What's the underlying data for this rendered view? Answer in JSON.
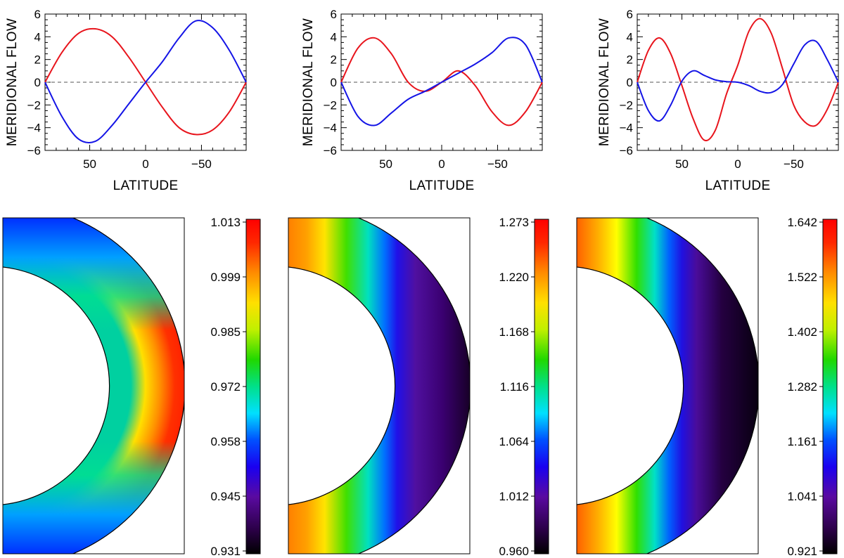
{
  "colors": {
    "series_a": "#e8141c",
    "series_b": "#1414e6",
    "zero_line": "#555555",
    "frame": "#000000"
  },
  "chart_data": [
    {
      "type": "line",
      "panel": "top-left",
      "xlabel": "LATITUDE",
      "ylabel": "MERIDIONAL FLOW",
      "xlim": [
        90,
        -90
      ],
      "ylim": [
        -6,
        6
      ],
      "xticks": [
        50,
        0,
        -50
      ],
      "yticks": [
        -6,
        -4,
        -2,
        0,
        2,
        4,
        6
      ],
      "x": [
        90,
        75,
        60,
        45,
        30,
        15,
        0,
        -15,
        -30,
        -45,
        -60,
        -75,
        -90
      ],
      "series": [
        {
          "name": "red",
          "color": "#e8141c",
          "values": [
            0,
            2.6,
            4.3,
            4.7,
            4.0,
            2.2,
            0,
            -2.2,
            -4.0,
            -4.6,
            -4.2,
            -2.6,
            0
          ]
        },
        {
          "name": "blue",
          "color": "#1414e6",
          "values": [
            0,
            -3.0,
            -5.0,
            -5.2,
            -3.8,
            -1.9,
            0,
            1.8,
            3.9,
            5.4,
            4.8,
            2.8,
            0
          ]
        }
      ],
      "zero_line": true
    },
    {
      "type": "line",
      "panel": "top-middle",
      "xlabel": "LATITUDE",
      "ylabel": "MERIDIONAL FLOW",
      "xlim": [
        90,
        -90
      ],
      "ylim": [
        -6,
        6
      ],
      "xticks": [
        50,
        0,
        -50
      ],
      "yticks": [
        -6,
        -4,
        -2,
        0,
        2,
        4,
        6
      ],
      "x": [
        90,
        75,
        60,
        45,
        30,
        15,
        0,
        -15,
        -30,
        -45,
        -60,
        -75,
        -90
      ],
      "series": [
        {
          "name": "red",
          "color": "#e8141c",
          "values": [
            0,
            3.0,
            3.9,
            2.5,
            0.0,
            -0.8,
            0,
            1.0,
            -0.3,
            -2.6,
            -3.8,
            -2.6,
            0
          ]
        },
        {
          "name": "blue",
          "color": "#1414e6",
          "values": [
            0,
            -3.0,
            -3.8,
            -2.7,
            -1.5,
            -0.8,
            0,
            0.8,
            1.6,
            2.6,
            3.9,
            3.3,
            0
          ]
        }
      ],
      "zero_line": true
    },
    {
      "type": "line",
      "panel": "top-right",
      "xlabel": "LATITUDE",
      "ylabel": "MERIDIONAL FLOW",
      "xlim": [
        90,
        -90
      ],
      "ylim": [
        -6,
        6
      ],
      "xticks": [
        50,
        0,
        -50
      ],
      "yticks": [
        -6,
        -4,
        -2,
        0,
        2,
        4,
        6
      ],
      "x": [
        90,
        80,
        70,
        60,
        50,
        40,
        30,
        20,
        10,
        0,
        -10,
        -20,
        -30,
        -40,
        -50,
        -60,
        -70,
        -80,
        -90
      ],
      "series": [
        {
          "name": "red",
          "color": "#e8141c",
          "values": [
            0,
            2.8,
            3.9,
            2.5,
            -0.3,
            -3.2,
            -5.1,
            -4.2,
            -1.0,
            1.5,
            4.5,
            5.6,
            4.3,
            1.2,
            -2.0,
            -3.5,
            -3.8,
            -2.4,
            0
          ]
        },
        {
          "name": "blue",
          "color": "#1414e6",
          "values": [
            0,
            -2.5,
            -3.4,
            -2.0,
            0.1,
            1.0,
            0.6,
            0.2,
            0.05,
            0.0,
            -0.3,
            -0.8,
            -0.9,
            -0.2,
            1.6,
            3.3,
            3.6,
            2.0,
            0
          ]
        }
      ],
      "zero_line": true
    },
    {
      "type": "heatmap",
      "panel": "bottom-left",
      "colormap": "rainbow",
      "colorbar_ticks": [
        "1.013",
        "0.999",
        "0.985",
        "0.972",
        "0.958",
        "0.945",
        "0.931"
      ],
      "range": [
        0.931,
        1.013
      ]
    },
    {
      "type": "heatmap",
      "panel": "bottom-middle",
      "colormap": "rainbow",
      "colorbar_ticks": [
        "1.273",
        "1.220",
        "1.168",
        "1.116",
        "1.064",
        "1.012",
        "0.960"
      ],
      "range": [
        0.96,
        1.273
      ]
    },
    {
      "type": "heatmap",
      "panel": "bottom-right",
      "colormap": "rainbow",
      "colorbar_ticks": [
        "1.642",
        "1.522",
        "1.402",
        "1.282",
        "1.161",
        "1.041",
        "0.921"
      ],
      "range": [
        0.921,
        1.642
      ]
    }
  ]
}
